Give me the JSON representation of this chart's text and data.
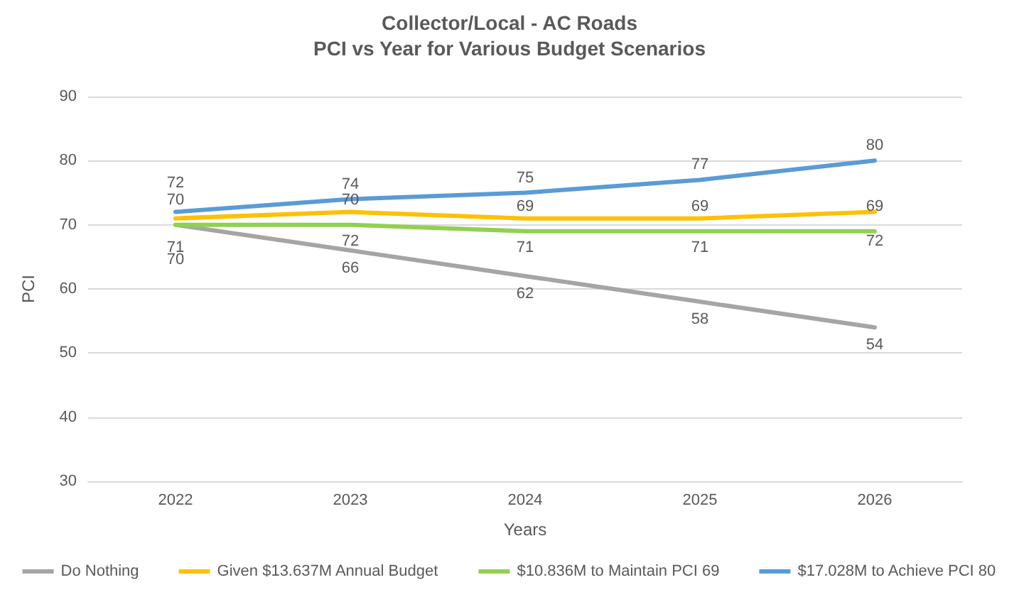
{
  "chart_data": {
    "type": "line",
    "title": "Collector/Local - AC Roads",
    "subtitle": "PCI vs Year for Various Budget Scenarios",
    "xlabel": "Years",
    "ylabel": "PCI",
    "categories": [
      "2022",
      "2023",
      "2024",
      "2025",
      "2026"
    ],
    "series": [
      {
        "name": "Do Nothing",
        "color": "#a5a5a5",
        "values": [
          70,
          66,
          62,
          58,
          54
        ]
      },
      {
        "name": "Given $13.637M Annual Budget",
        "color": "#ffc000",
        "values": [
          71,
          72,
          71,
          71,
          72
        ]
      },
      {
        "name": "$10.836M to Maintain PCI 69",
        "color": "#92d050",
        "values": [
          70,
          70,
          69,
          69,
          69
        ]
      },
      {
        "name": "$17.028M to Achieve PCI 80",
        "color": "#5b9bd5",
        "values": [
          72,
          74,
          75,
          77,
          80
        ]
      }
    ],
    "data_labels": true,
    "ylim": [
      30,
      90
    ],
    "yticks": [
      30,
      40,
      50,
      60,
      70,
      80,
      90
    ],
    "grid": "y",
    "legend": "bottom",
    "marker": "none",
    "line_style": "solid"
  }
}
